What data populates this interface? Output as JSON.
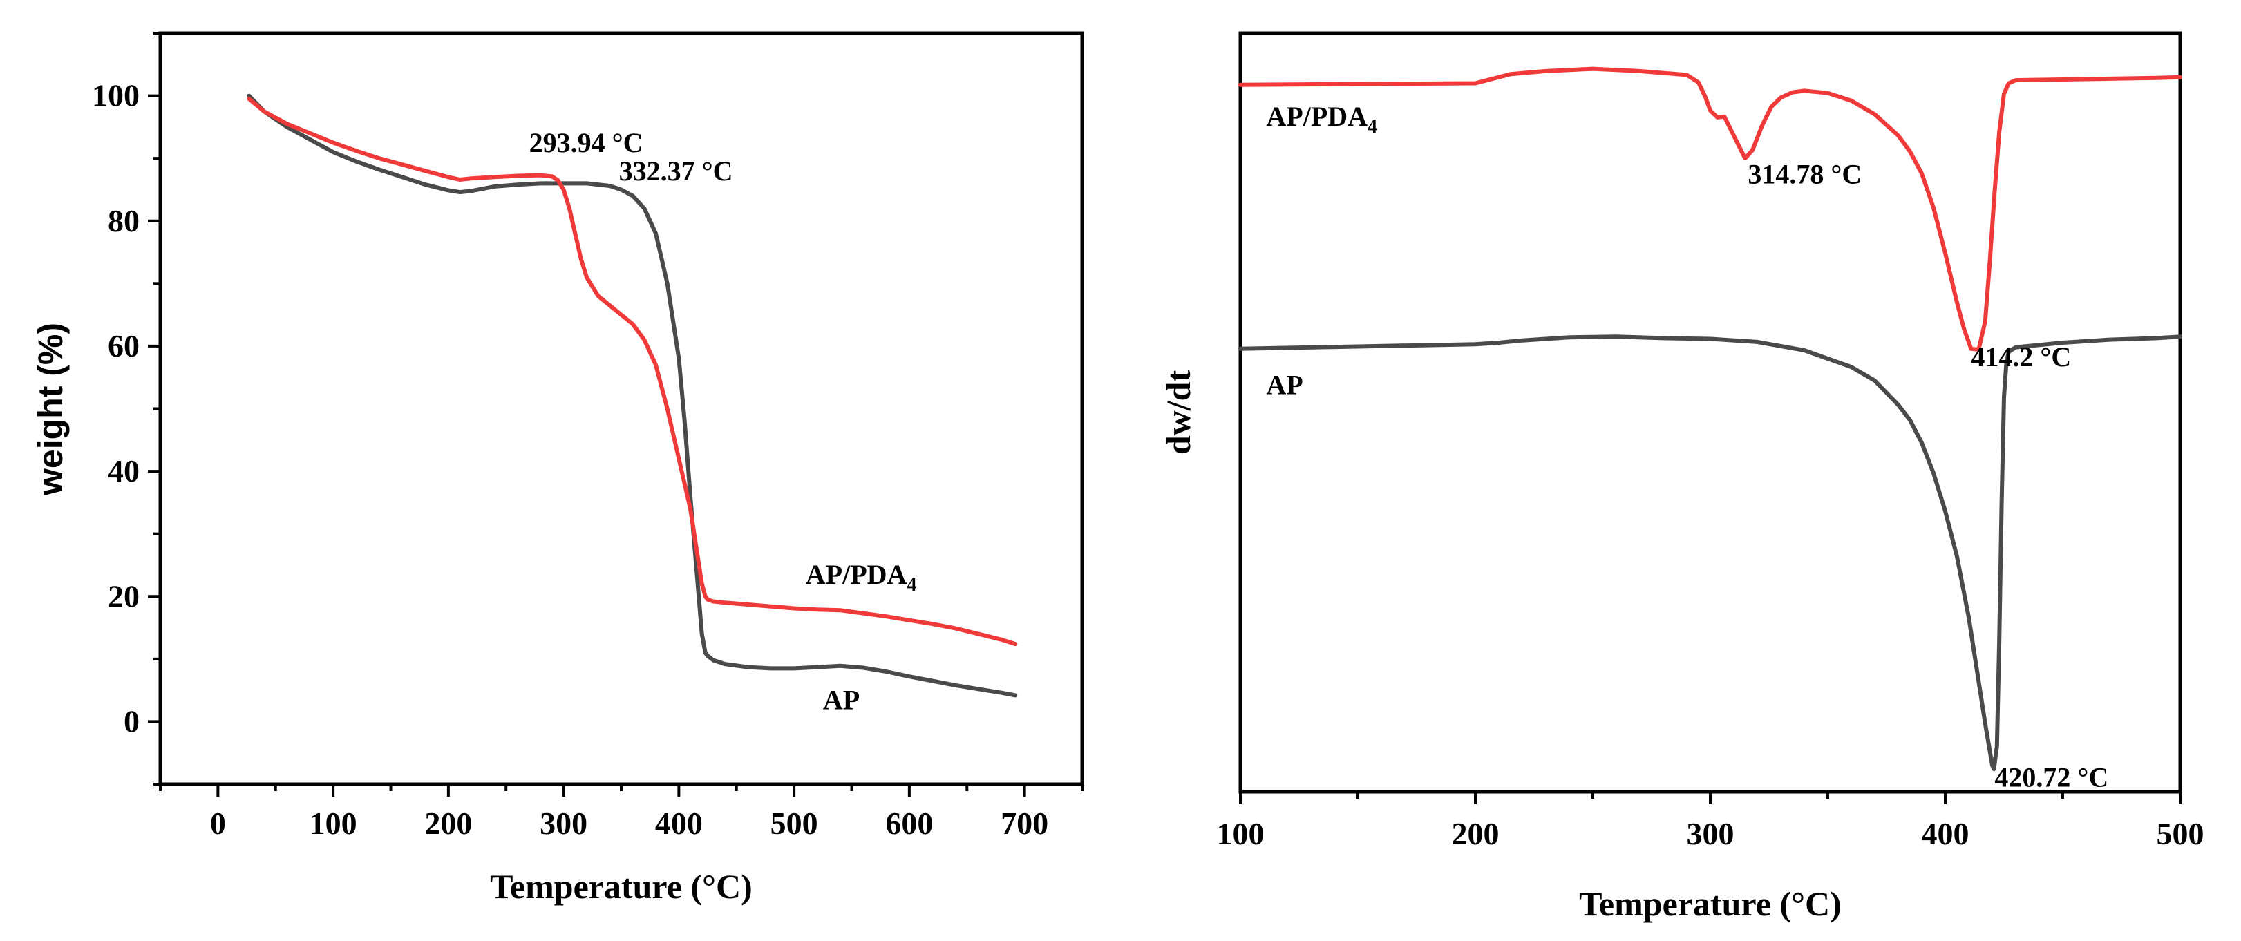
{
  "chart_data": [
    {
      "type": "line",
      "title": "",
      "xlabel": "Temperature (°C)",
      "ylabel": "weight (%)",
      "xlim": [
        -50,
        750
      ],
      "ylim": [
        -10,
        110
      ],
      "xticks": [
        0,
        100,
        200,
        300,
        400,
        500,
        600,
        700
      ],
      "yticks": [
        0,
        20,
        40,
        60,
        80,
        100
      ],
      "series": [
        {
          "name": "AP",
          "color": "#4a4a4a",
          "x": [
            27,
            40,
            60,
            80,
            100,
            120,
            140,
            160,
            180,
            200,
            210,
            220,
            240,
            260,
            280,
            300,
            320,
            340,
            350,
            360,
            370,
            380,
            390,
            400,
            405,
            410,
            415,
            420,
            423,
            425,
            430,
            440,
            460,
            480,
            500,
            520,
            540,
            560,
            580,
            600,
            620,
            640,
            660,
            680,
            692
          ],
          "y": [
            100,
            97.5,
            95,
            93,
            91,
            89.5,
            88.2,
            87,
            85.8,
            84.9,
            84.6,
            84.8,
            85.5,
            85.8,
            86,
            86,
            86,
            85.6,
            85,
            84,
            82,
            78,
            70,
            58,
            48,
            36,
            25,
            14,
            11,
            10.5,
            9.8,
            9.2,
            8.7,
            8.5,
            8.5,
            8.7,
            8.9,
            8.6,
            8,
            7.2,
            6.5,
            5.8,
            5.2,
            4.6,
            4.2
          ]
        },
        {
          "name": "AP/PDA4",
          "color": "#f03a3a",
          "x": [
            27,
            40,
            60,
            80,
            100,
            120,
            140,
            160,
            180,
            200,
            210,
            220,
            240,
            260,
            280,
            290,
            295,
            300,
            305,
            310,
            315,
            320,
            330,
            340,
            350,
            360,
            370,
            380,
            390,
            400,
            410,
            415,
            420,
            423,
            425,
            430,
            440,
            460,
            480,
            500,
            520,
            540,
            560,
            580,
            600,
            620,
            640,
            660,
            680,
            692
          ],
          "y": [
            99.5,
            97.5,
            95.5,
            94,
            92.5,
            91.2,
            90,
            89,
            88,
            87,
            86.6,
            86.8,
            87,
            87.2,
            87.3,
            87.1,
            86.5,
            85,
            82,
            78,
            74,
            71,
            68,
            66.5,
            65,
            63.5,
            61,
            57,
            50,
            42,
            34,
            28,
            22,
            20,
            19.5,
            19.2,
            19,
            18.7,
            18.4,
            18.1,
            17.9,
            17.8,
            17.3,
            16.8,
            16.2,
            15.6,
            14.9,
            14,
            13.1,
            12.4
          ]
        }
      ],
      "annotations": [
        {
          "text": "293.94 °C",
          "x": 270,
          "y": 91
        },
        {
          "text": "332.37 °C",
          "x": 348,
          "y": 86.5
        },
        {
          "text": "AP/PDA",
          "sub": "4",
          "x": 510,
          "y": 22
        },
        {
          "text": "AP",
          "x": 525,
          "y": 2
        }
      ]
    },
    {
      "type": "line",
      "title": "",
      "xlabel": "Temperature (°C)",
      "ylabel": "dw/dt",
      "xlim": [
        100,
        500
      ],
      "xticks": [
        100,
        200,
        300,
        400,
        500
      ],
      "yticks": [],
      "ylim": [
        0,
        100
      ],
      "series": [
        {
          "name": "AP/PDA4",
          "color": "#f03a3a",
          "x": [
            100,
            150,
            200,
            210,
            215,
            230,
            250,
            270,
            290,
            295,
            298,
            300,
            303,
            306,
            310,
            314.78,
            318,
            322,
            326,
            330,
            335,
            340,
            350,
            360,
            370,
            380,
            385,
            390,
            395,
            400,
            405,
            408,
            411,
            414.2,
            417,
            419,
            421,
            423,
            425,
            427,
            430,
            450,
            470,
            490,
            500
          ],
          "y": [
            93.2,
            93.3,
            93.4,
            94.2,
            94.6,
            95,
            95.3,
            95,
            94.5,
            93.5,
            91.5,
            89.8,
            88.9,
            89,
            86.5,
            83.5,
            84.6,
            87.8,
            90.3,
            91.5,
            92.2,
            92.4,
            92.1,
            91.1,
            89.3,
            86.5,
            84.4,
            81.5,
            77,
            71,
            64.5,
            61,
            58.4,
            58.3,
            62,
            70,
            79,
            87,
            92,
            93.4,
            93.8,
            93.9,
            94,
            94.1,
            94.2
          ]
        },
        {
          "name": "AP",
          "color": "#4a4a4a",
          "x": [
            100,
            150,
            200,
            210,
            220,
            240,
            260,
            280,
            300,
            320,
            340,
            360,
            370,
            380,
            385,
            390,
            395,
            400,
            405,
            410,
            414,
            417,
            420,
            420.72,
            422,
            423,
            424,
            425,
            426,
            427,
            430,
            450,
            470,
            490,
            500
          ],
          "y": [
            58.4,
            58.7,
            59,
            59.2,
            59.5,
            59.9,
            60,
            59.8,
            59.7,
            59.3,
            58.2,
            56,
            54.2,
            51,
            49,
            46,
            42,
            37,
            31,
            23,
            15,
            9,
            3.5,
            3,
            6,
            20,
            38,
            52,
            56.5,
            58,
            58.6,
            59.2,
            59.6,
            59.8,
            60
          ]
        }
      ],
      "annotations": [
        {
          "text": "AP/PDA",
          "sub": "4",
          "x": 111,
          "y": 87.8
        },
        {
          "text": "314.78 °C",
          "x": 316,
          "y": 80.2
        },
        {
          "text": "414.2 °C",
          "x": 411,
          "y": 56.1
        },
        {
          "text": "AP",
          "x": 111,
          "y": 52.4
        },
        {
          "text": "420.72 °C",
          "x": 421,
          "y": 0.7
        }
      ]
    }
  ]
}
